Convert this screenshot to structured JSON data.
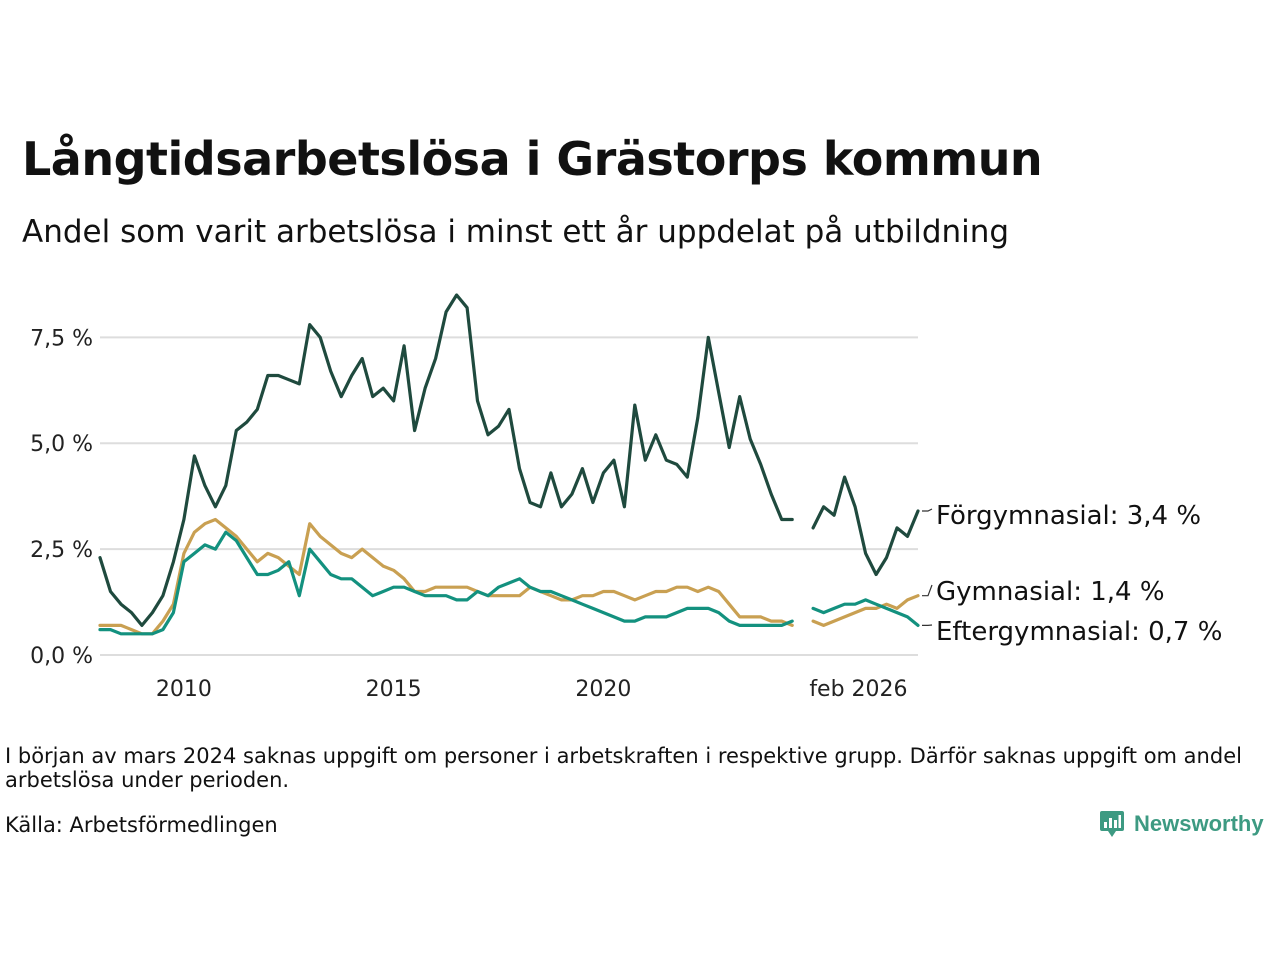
{
  "header": {
    "title": "Långtidsarbetslösa i Grästorps kommun",
    "subtitle": "Andel som varit arbetslösa i minst ett år uppdelat på utbildning"
  },
  "footer": {
    "note": "I början av mars 2024 saknas uppgift om personer i arbetskraften i respektive grupp. Därför saknas uppgift om andel arbetslösa under perioden.",
    "source": "Källa: Arbetsförmedlingen",
    "brand": "Newsworthy",
    "brand_icon": "newsworthy-logo-icon"
  },
  "colors": {
    "forgymnasial": "#1f4a3e",
    "gymnasial": "#c9a052",
    "eftergymnasial": "#13917f",
    "grid": "#dddddd",
    "brand": "#3d9a82"
  },
  "chart_data": {
    "type": "line",
    "title": "Långtidsarbetslösa i Grästorps kommun",
    "subtitle": "Andel som varit arbetslösa i minst ett år uppdelat på utbildning",
    "xlabel": "",
    "ylabel": "",
    "ylim": [
      0,
      8.5
    ],
    "y_ticks": [
      0,
      2.5,
      5,
      7.5
    ],
    "y_tick_labels": [
      "0,0 %",
      "2,5 %",
      "5,0 %",
      "7,5 %"
    ],
    "x_ticks": [
      2010,
      2015,
      2020,
      2026.08
    ],
    "x_tick_labels": [
      "2010",
      "2015",
      "2020",
      "feb 2026"
    ],
    "grid": true,
    "x_start": 2008.0,
    "step": 0.25,
    "gap": [
      2023.75,
      2024.0
    ],
    "series": [
      {
        "name": "Förgymnasial",
        "label": "Förgymnasial: 3,4 %",
        "color_key": "forgymnasial",
        "values": [
          2.3,
          1.5,
          1.2,
          1.0,
          0.7,
          1.0,
          1.4,
          2.2,
          3.2,
          4.7,
          4.0,
          3.5,
          4.0,
          5.3,
          5.5,
          5.8,
          6.6,
          6.6,
          6.5,
          6.4,
          7.8,
          7.5,
          6.7,
          6.1,
          6.6,
          7.0,
          6.1,
          6.3,
          6.0,
          7.3,
          5.3,
          6.3,
          7.0,
          8.1,
          8.5,
          8.2,
          6.0,
          5.2,
          5.4,
          5.8,
          4.4,
          3.6,
          3.5,
          4.3,
          3.5,
          3.8,
          4.4,
          3.6,
          4.3,
          4.6,
          3.5,
          5.9,
          4.6,
          5.2,
          4.6,
          4.5,
          4.2,
          5.6,
          7.5,
          6.2,
          4.9,
          6.1,
          5.1,
          4.5,
          3.8,
          3.2,
          3.2,
          null,
          3.0,
          3.5,
          3.3,
          4.2,
          3.5,
          2.4,
          1.9,
          2.3,
          3.0,
          2.8,
          3.4
        ]
      },
      {
        "name": "Gymnasial",
        "label": "Gymnasial: 1,4 %",
        "color_key": "gymnasial",
        "values": [
          0.7,
          0.7,
          0.7,
          0.6,
          0.5,
          0.5,
          0.8,
          1.2,
          2.4,
          2.9,
          3.1,
          3.2,
          3.0,
          2.8,
          2.5,
          2.2,
          2.4,
          2.3,
          2.1,
          1.9,
          3.1,
          2.8,
          2.6,
          2.4,
          2.3,
          2.5,
          2.3,
          2.1,
          2.0,
          1.8,
          1.5,
          1.5,
          1.6,
          1.6,
          1.6,
          1.6,
          1.5,
          1.4,
          1.4,
          1.4,
          1.4,
          1.6,
          1.5,
          1.4,
          1.3,
          1.3,
          1.4,
          1.4,
          1.5,
          1.5,
          1.4,
          1.3,
          1.4,
          1.5,
          1.5,
          1.6,
          1.6,
          1.5,
          1.6,
          1.5,
          1.2,
          0.9,
          0.9,
          0.9,
          0.8,
          0.8,
          0.7,
          null,
          0.8,
          0.7,
          0.8,
          0.9,
          1.0,
          1.1,
          1.1,
          1.2,
          1.1,
          1.3,
          1.4
        ]
      },
      {
        "name": "Eftergymnasial",
        "label": "Eftergymnasial: 0,7 %",
        "color_key": "eftergymnasial",
        "values": [
          0.6,
          0.6,
          0.5,
          0.5,
          0.5,
          0.5,
          0.6,
          1.0,
          2.2,
          2.4,
          2.6,
          2.5,
          2.9,
          2.7,
          2.3,
          1.9,
          1.9,
          2.0,
          2.2,
          1.4,
          2.5,
          2.2,
          1.9,
          1.8,
          1.8,
          1.6,
          1.4,
          1.5,
          1.6,
          1.6,
          1.5,
          1.4,
          1.4,
          1.4,
          1.3,
          1.3,
          1.5,
          1.4,
          1.6,
          1.7,
          1.8,
          1.6,
          1.5,
          1.5,
          1.4,
          1.3,
          1.2,
          1.1,
          1.0,
          0.9,
          0.8,
          0.8,
          0.9,
          0.9,
          0.9,
          1.0,
          1.1,
          1.1,
          1.1,
          1.0,
          0.8,
          0.7,
          0.7,
          0.7,
          0.7,
          0.7,
          0.8,
          null,
          1.1,
          1.0,
          1.1,
          1.2,
          1.2,
          1.3,
          1.2,
          1.1,
          1.0,
          0.9,
          0.7
        ]
      }
    ]
  }
}
